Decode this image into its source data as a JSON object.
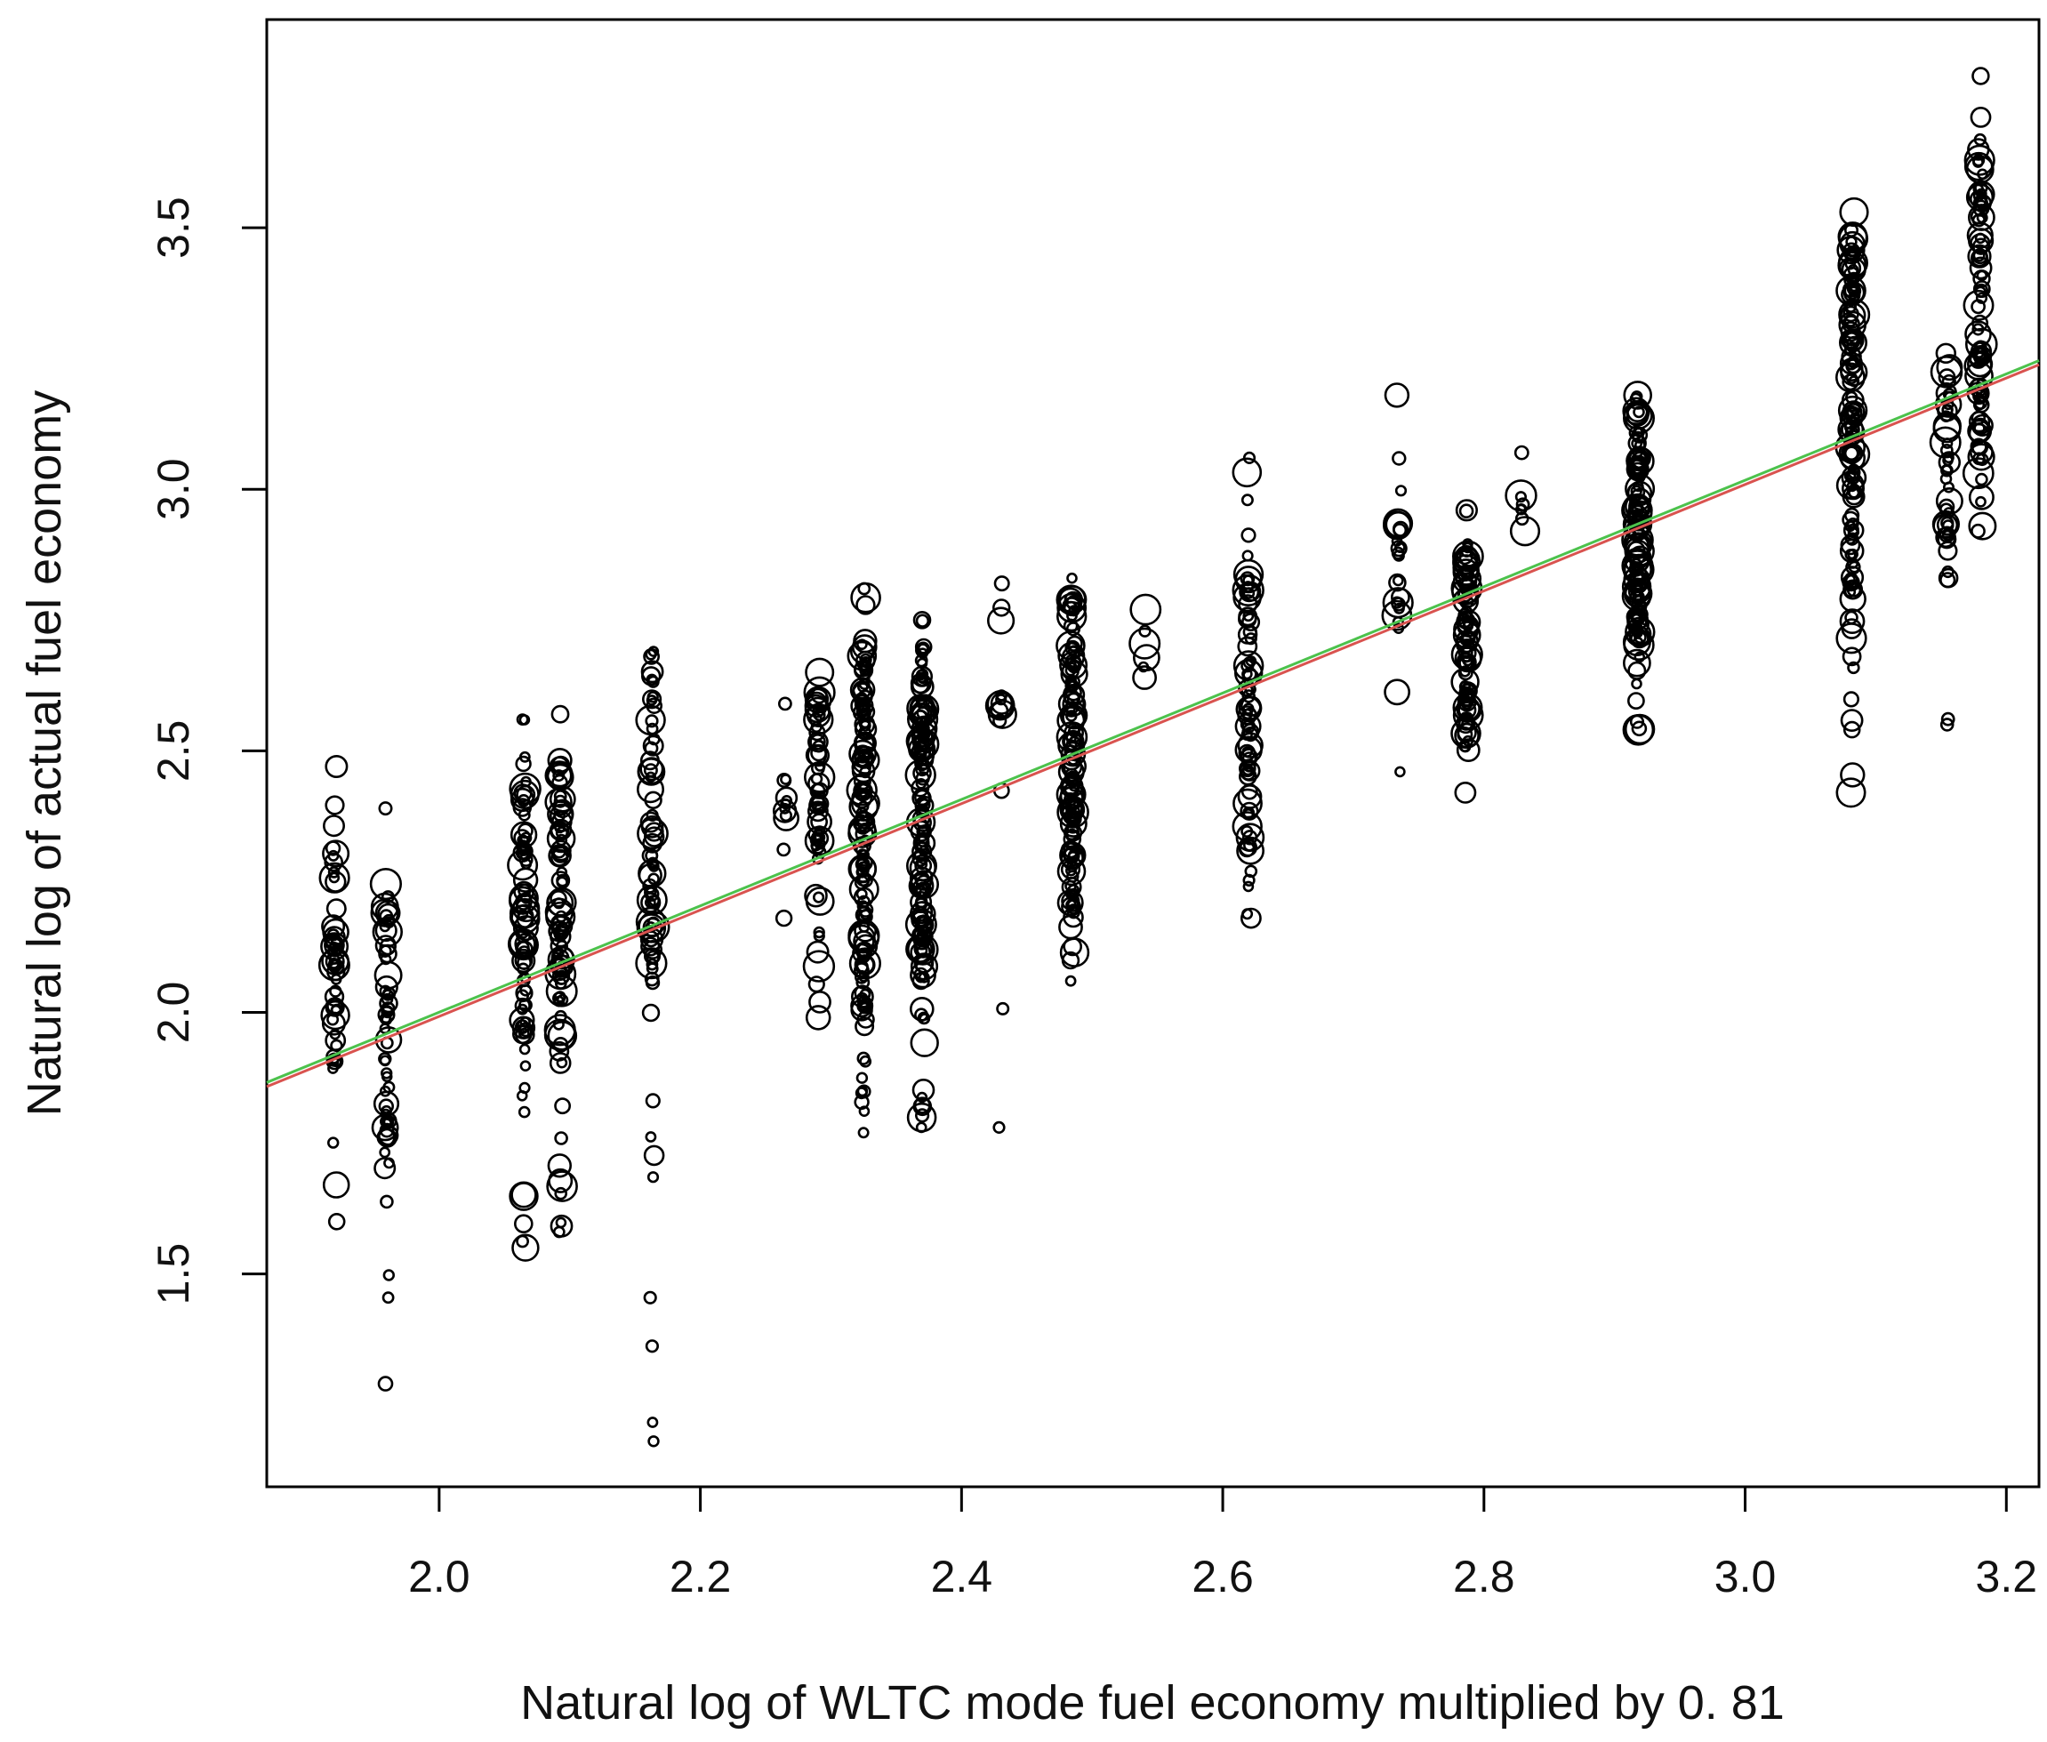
{
  "chart_data": {
    "type": "scatter",
    "title": "",
    "xlabel": "Natural log of WLTC mode fuel economy multiplied by 0. 81",
    "ylabel": "Natural log of actual fuel economy",
    "xlim": [
      1.868,
      3.225
    ],
    "ylim": [
      1.093,
      3.898
    ],
    "x_ticks": [
      2.0,
      2.2,
      2.4,
      2.6,
      2.8,
      3.0,
      3.2
    ],
    "x_tick_labels": [
      "2.0",
      "2.2",
      "2.4",
      "2.6",
      "2.8",
      "3.0",
      "3.2"
    ],
    "y_ticks": [
      1.5,
      2.0,
      2.5,
      3.0,
      3.5
    ],
    "y_tick_labels": [
      "1.5",
      "2.0",
      "2.5",
      "3.0",
      "3.5"
    ],
    "grid": false,
    "marker": "open-circle",
    "columns": [
      {
        "x": 1.92,
        "y_min": 1.6,
        "y_max": 2.47,
        "dense_min": 1.85,
        "dense_max": 2.3,
        "n": 55
      },
      {
        "x": 1.96,
        "y_min": 1.29,
        "y_max": 2.39,
        "dense_min": 1.7,
        "dense_max": 2.2,
        "n": 60
      },
      {
        "x": 2.065,
        "y_min": 1.55,
        "y_max": 2.56,
        "dense_min": 1.95,
        "dense_max": 2.42,
        "n": 85
      },
      {
        "x": 2.093,
        "y_min": 1.58,
        "y_max": 2.57,
        "dense_min": 1.95,
        "dense_max": 2.48,
        "n": 90
      },
      {
        "x": 2.163,
        "y_min": 1.18,
        "y_max": 2.69,
        "dense_min": 2.05,
        "dense_max": 2.65,
        "n": 75
      },
      {
        "x": 2.265,
        "y_min": 2.18,
        "y_max": 2.59,
        "dense_min": 2.3,
        "dense_max": 2.45,
        "n": 12
      },
      {
        "x": 2.29,
        "y_min": 1.99,
        "y_max": 2.65,
        "dense_min": 2.3,
        "dense_max": 2.62,
        "n": 60
      },
      {
        "x": 2.325,
        "y_min": 1.77,
        "y_max": 2.81,
        "dense_min": 2.0,
        "dense_max": 2.7,
        "n": 150
      },
      {
        "x": 2.37,
        "y_min": 1.78,
        "y_max": 2.75,
        "dense_min": 2.05,
        "dense_max": 2.7,
        "n": 150
      },
      {
        "x": 2.43,
        "y_min": 1.78,
        "y_max": 2.82,
        "dense_min": 2.5,
        "dense_max": 2.8,
        "n": 14
      },
      {
        "x": 2.485,
        "y_min": 2.06,
        "y_max": 2.83,
        "dense_min": 2.2,
        "dense_max": 2.8,
        "n": 130
      },
      {
        "x": 2.54,
        "y_min": 2.64,
        "y_max": 2.77,
        "dense_min": 2.64,
        "dense_max": 2.77,
        "n": 5
      },
      {
        "x": 2.62,
        "y_min": 2.18,
        "y_max": 3.06,
        "dense_min": 2.3,
        "dense_max": 2.85,
        "n": 80
      },
      {
        "x": 2.735,
        "y_min": 2.46,
        "y_max": 3.18,
        "dense_min": 2.7,
        "dense_max": 3.05,
        "n": 25
      },
      {
        "x": 2.787,
        "y_min": 2.42,
        "y_max": 2.96,
        "dense_min": 2.5,
        "dense_max": 2.9,
        "n": 90
      },
      {
        "x": 2.83,
        "y_min": 2.92,
        "y_max": 3.07,
        "dense_min": 2.92,
        "dense_max": 3.0,
        "n": 8
      },
      {
        "x": 2.918,
        "y_min": 2.54,
        "y_max": 3.18,
        "dense_min": 2.7,
        "dense_max": 3.15,
        "n": 130
      },
      {
        "x": 3.082,
        "y_min": 2.42,
        "y_max": 3.53,
        "dense_min": 2.8,
        "dense_max": 3.5,
        "n": 140
      },
      {
        "x": 3.155,
        "y_min": 2.55,
        "y_max": 3.26,
        "dense_min": 2.9,
        "dense_max": 3.25,
        "n": 45
      },
      {
        "x": 3.18,
        "y_min": 2.92,
        "y_max": 3.79,
        "dense_min": 3.05,
        "dense_max": 3.65,
        "n": 90
      }
    ],
    "fit_lines": [
      {
        "name": "fit-red",
        "color": "#d9534f",
        "x": [
          1.868,
          3.225
        ],
        "y": [
          1.858,
          3.238
        ]
      },
      {
        "name": "fit-green",
        "color": "#4cc24c",
        "x": [
          1.868,
          3.225
        ],
        "y": [
          1.866,
          3.246
        ]
      }
    ]
  }
}
